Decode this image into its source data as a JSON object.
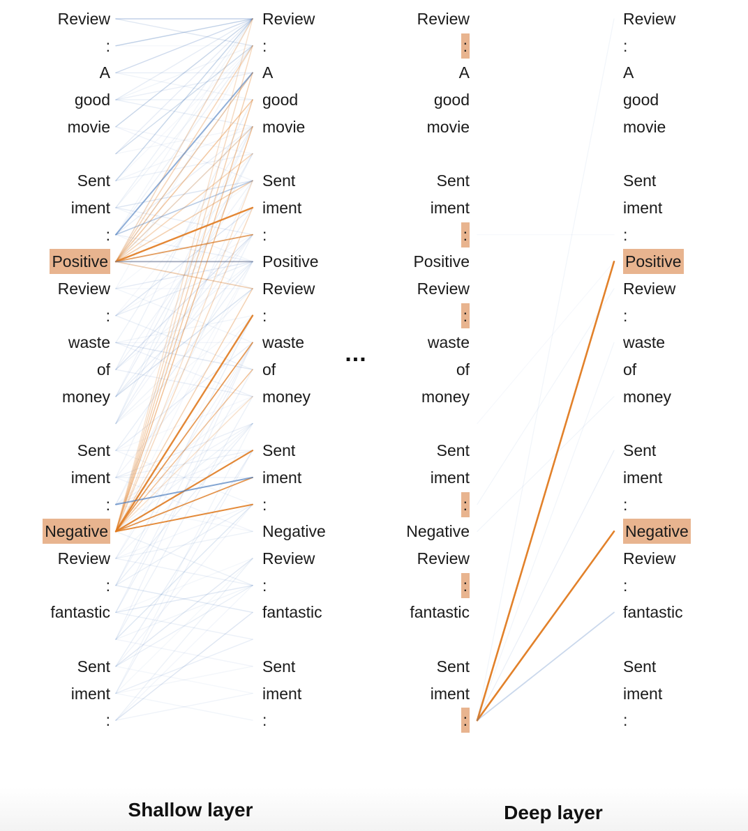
{
  "tokens": [
    "Review",
    ":",
    "A",
    "good",
    "movie",
    "",
    "Sent",
    "iment",
    ":",
    "Positive",
    "Review",
    ":",
    "waste",
    "of",
    "money",
    "",
    "Sent",
    "iment",
    ":",
    "Negative",
    "Review",
    ":",
    "fantastic",
    "",
    "Sent",
    "iment",
    ":"
  ],
  "ellipsis": "...",
  "panels": {
    "shallow": {
      "title": "Shallow layer",
      "source_highlight": [
        "Positive",
        "Negative"
      ],
      "target_highlight": []
    },
    "deep": {
      "title": "Deep layer",
      "source_highlight": [
        ":"
      ],
      "target_highlight": [
        "Positive",
        "Negative"
      ]
    }
  },
  "colors": {
    "orange": "#e07a1f",
    "blue": "#4f7fbf",
    "highlight": "#e8b48f",
    "text": "#1a1a1a"
  }
}
